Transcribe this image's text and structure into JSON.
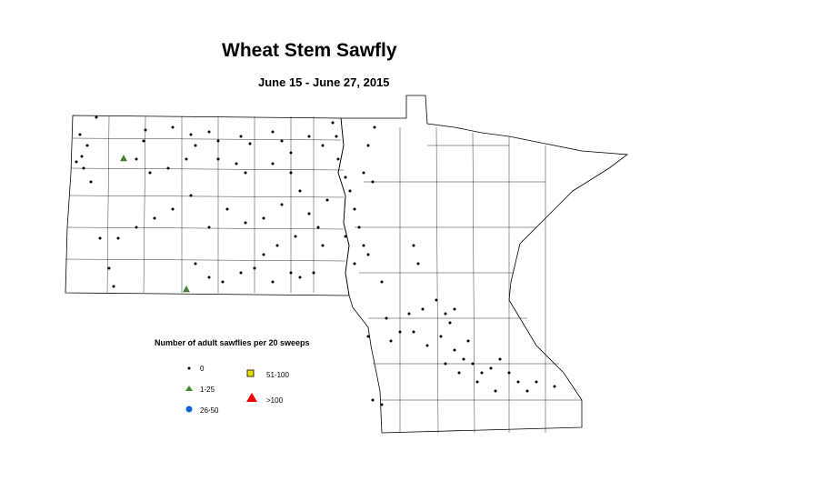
{
  "title": "Wheat Stem Sawfly",
  "subtitle": "June 15 - June 27, 2015",
  "legend": {
    "title": "Number of adult sawflies per 20 sweeps",
    "items": [
      {
        "label": "0",
        "symbol": "dot",
        "color": "#000000"
      },
      {
        "label": "1-25",
        "symbol": "triangle",
        "color": "#3a8a2a"
      },
      {
        "label": "26-50",
        "symbol": "circle",
        "color": "#1060e0"
      },
      {
        "label": "51-100",
        "symbol": "square",
        "color": "#e8e000"
      },
      {
        "label": ">100",
        "symbol": "triangle",
        "color": "#ee0000"
      }
    ]
  }
}
